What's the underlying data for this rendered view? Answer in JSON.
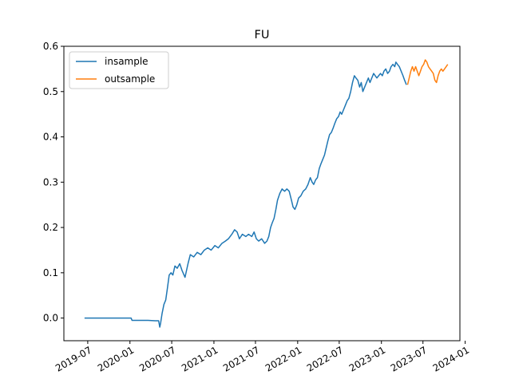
{
  "chart_data": {
    "type": "line",
    "title": "FU",
    "xlabel": "",
    "ylabel": "",
    "x_axis_type": "date",
    "xlim": [
      "2019-03-19",
      "2023-12-09"
    ],
    "ylim": [
      -0.05,
      0.6
    ],
    "x_ticks": [
      "2019-07",
      "2020-01",
      "2020-07",
      "2021-01",
      "2021-07",
      "2022-01",
      "2022-07",
      "2023-01",
      "2023-07",
      "2024-01"
    ],
    "x_tick_dates": [
      "2019-07-01",
      "2020-01-01",
      "2020-07-01",
      "2021-01-01",
      "2021-07-01",
      "2022-01-01",
      "2022-07-01",
      "2023-01-01",
      "2023-07-01",
      "2024-01-01"
    ],
    "y_ticks": [
      "0.0",
      "0.1",
      "0.2",
      "0.3",
      "0.4",
      "0.5",
      "0.6"
    ],
    "y_tick_values": [
      0.0,
      0.1,
      0.2,
      0.3,
      0.4,
      0.5,
      0.6
    ],
    "x_tick_label_rotation": 30,
    "grid": false,
    "legend": {
      "position": "top-left"
    },
    "series": [
      {
        "name": "insample",
        "color": "#1f77b4",
        "points": [
          [
            "2019-06-17",
            0.0
          ],
          [
            "2019-08-15",
            0.0
          ],
          [
            "2019-10-15",
            0.0
          ],
          [
            "2019-12-20",
            0.0
          ],
          [
            "2020-01-06",
            0.0
          ],
          [
            "2020-01-10",
            -0.005
          ],
          [
            "2020-02-15",
            -0.005
          ],
          [
            "2020-03-20",
            -0.005
          ],
          [
            "2020-04-20",
            -0.006
          ],
          [
            "2020-05-05",
            -0.006
          ],
          [
            "2020-05-10",
            -0.02
          ],
          [
            "2020-05-14",
            -0.01
          ],
          [
            "2020-05-20",
            0.01
          ],
          [
            "2020-05-28",
            0.03
          ],
          [
            "2020-06-05",
            0.04
          ],
          [
            "2020-06-12",
            0.065
          ],
          [
            "2020-06-20",
            0.095
          ],
          [
            "2020-06-28",
            0.1
          ],
          [
            "2020-07-06",
            0.095
          ],
          [
            "2020-07-15",
            0.115
          ],
          [
            "2020-07-25",
            0.11
          ],
          [
            "2020-08-05",
            0.12
          ],
          [
            "2020-08-15",
            0.105
          ],
          [
            "2020-08-28",
            0.09
          ],
          [
            "2020-09-10",
            0.12
          ],
          [
            "2020-09-20",
            0.14
          ],
          [
            "2020-10-05",
            0.135
          ],
          [
            "2020-10-20",
            0.145
          ],
          [
            "2020-11-05",
            0.14
          ],
          [
            "2020-11-20",
            0.15
          ],
          [
            "2020-12-05",
            0.155
          ],
          [
            "2020-12-20",
            0.15
          ],
          [
            "2021-01-05",
            0.16
          ],
          [
            "2021-01-20",
            0.155
          ],
          [
            "2021-02-05",
            0.165
          ],
          [
            "2021-02-20",
            0.17
          ],
          [
            "2021-03-05",
            0.175
          ],
          [
            "2021-03-20",
            0.185
          ],
          [
            "2021-04-01",
            0.195
          ],
          [
            "2021-04-12",
            0.19
          ],
          [
            "2021-04-22",
            0.175
          ],
          [
            "2021-05-05",
            0.185
          ],
          [
            "2021-05-20",
            0.18
          ],
          [
            "2021-06-01",
            0.185
          ],
          [
            "2021-06-15",
            0.18
          ],
          [
            "2021-06-25",
            0.19
          ],
          [
            "2021-07-05",
            0.175
          ],
          [
            "2021-07-15",
            0.17
          ],
          [
            "2021-07-28",
            0.175
          ],
          [
            "2021-08-10",
            0.165
          ],
          [
            "2021-08-20",
            0.17
          ],
          [
            "2021-08-28",
            0.18
          ],
          [
            "2021-09-05",
            0.2
          ],
          [
            "2021-09-12",
            0.21
          ],
          [
            "2021-09-20",
            0.22
          ],
          [
            "2021-09-28",
            0.24
          ],
          [
            "2021-10-05",
            0.26
          ],
          [
            "2021-10-15",
            0.275
          ],
          [
            "2021-10-25",
            0.285
          ],
          [
            "2021-11-05",
            0.28
          ],
          [
            "2021-11-15",
            0.285
          ],
          [
            "2021-11-25",
            0.28
          ],
          [
            "2021-12-05",
            0.26
          ],
          [
            "2021-12-12",
            0.245
          ],
          [
            "2021-12-20",
            0.24
          ],
          [
            "2021-12-28",
            0.25
          ],
          [
            "2022-01-05",
            0.265
          ],
          [
            "2022-01-15",
            0.27
          ],
          [
            "2022-01-25",
            0.28
          ],
          [
            "2022-02-05",
            0.285
          ],
          [
            "2022-02-15",
            0.295
          ],
          [
            "2022-02-25",
            0.31
          ],
          [
            "2022-03-05",
            0.3
          ],
          [
            "2022-03-12",
            0.295
          ],
          [
            "2022-03-20",
            0.305
          ],
          [
            "2022-03-28",
            0.31
          ],
          [
            "2022-04-05",
            0.33
          ],
          [
            "2022-04-12",
            0.34
          ],
          [
            "2022-04-20",
            0.35
          ],
          [
            "2022-04-28",
            0.36
          ],
          [
            "2022-05-05",
            0.375
          ],
          [
            "2022-05-12",
            0.39
          ],
          [
            "2022-05-20",
            0.405
          ],
          [
            "2022-05-28",
            0.41
          ],
          [
            "2022-06-05",
            0.42
          ],
          [
            "2022-06-12",
            0.43
          ],
          [
            "2022-06-20",
            0.44
          ],
          [
            "2022-06-28",
            0.445
          ],
          [
            "2022-07-05",
            0.455
          ],
          [
            "2022-07-12",
            0.45
          ],
          [
            "2022-07-20",
            0.46
          ],
          [
            "2022-07-28",
            0.47
          ],
          [
            "2022-08-05",
            0.48
          ],
          [
            "2022-08-12",
            0.485
          ],
          [
            "2022-08-20",
            0.5
          ],
          [
            "2022-08-28",
            0.52
          ],
          [
            "2022-09-05",
            0.535
          ],
          [
            "2022-09-12",
            0.53
          ],
          [
            "2022-09-20",
            0.525
          ],
          [
            "2022-09-28",
            0.51
          ],
          [
            "2022-10-05",
            0.52
          ],
          [
            "2022-10-12",
            0.5
          ],
          [
            "2022-10-20",
            0.51
          ],
          [
            "2022-10-28",
            0.52
          ],
          [
            "2022-11-05",
            0.53
          ],
          [
            "2022-11-12",
            0.52
          ],
          [
            "2022-11-20",
            0.53
          ],
          [
            "2022-11-28",
            0.54
          ],
          [
            "2022-12-05",
            0.535
          ],
          [
            "2022-12-12",
            0.53
          ],
          [
            "2022-12-20",
            0.535
          ],
          [
            "2022-12-28",
            0.54
          ],
          [
            "2023-01-05",
            0.535
          ],
          [
            "2023-01-12",
            0.545
          ],
          [
            "2023-01-20",
            0.55
          ],
          [
            "2023-01-28",
            0.54
          ],
          [
            "2023-02-05",
            0.545
          ],
          [
            "2023-02-12",
            0.555
          ],
          [
            "2023-02-20",
            0.56
          ],
          [
            "2023-02-28",
            0.555
          ],
          [
            "2023-03-05",
            0.565
          ],
          [
            "2023-03-12",
            0.56
          ],
          [
            "2023-03-20",
            0.555
          ],
          [
            "2023-03-28",
            0.545
          ],
          [
            "2023-04-05",
            0.535
          ],
          [
            "2023-04-12",
            0.525
          ],
          [
            "2023-04-20",
            0.515
          ]
        ]
      },
      {
        "name": "outsample",
        "color": "#ff7f0e",
        "points": [
          [
            "2023-04-25",
            0.515
          ],
          [
            "2023-05-02",
            0.53
          ],
          [
            "2023-05-09",
            0.545
          ],
          [
            "2023-05-16",
            0.555
          ],
          [
            "2023-05-23",
            0.545
          ],
          [
            "2023-05-30",
            0.555
          ],
          [
            "2023-06-06",
            0.545
          ],
          [
            "2023-06-13",
            0.535
          ],
          [
            "2023-06-20",
            0.545
          ],
          [
            "2023-06-27",
            0.555
          ],
          [
            "2023-07-04",
            0.56
          ],
          [
            "2023-07-11",
            0.57
          ],
          [
            "2023-07-18",
            0.565
          ],
          [
            "2023-07-25",
            0.555
          ],
          [
            "2023-08-01",
            0.55
          ],
          [
            "2023-08-08",
            0.545
          ],
          [
            "2023-08-15",
            0.54
          ],
          [
            "2023-08-22",
            0.525
          ],
          [
            "2023-08-29",
            0.52
          ],
          [
            "2023-09-05",
            0.535
          ],
          [
            "2023-09-12",
            0.545
          ],
          [
            "2023-09-19",
            0.55
          ],
          [
            "2023-09-26",
            0.545
          ],
          [
            "2023-10-03",
            0.55
          ],
          [
            "2023-10-10",
            0.555
          ],
          [
            "2023-10-17",
            0.56
          ]
        ]
      }
    ]
  }
}
